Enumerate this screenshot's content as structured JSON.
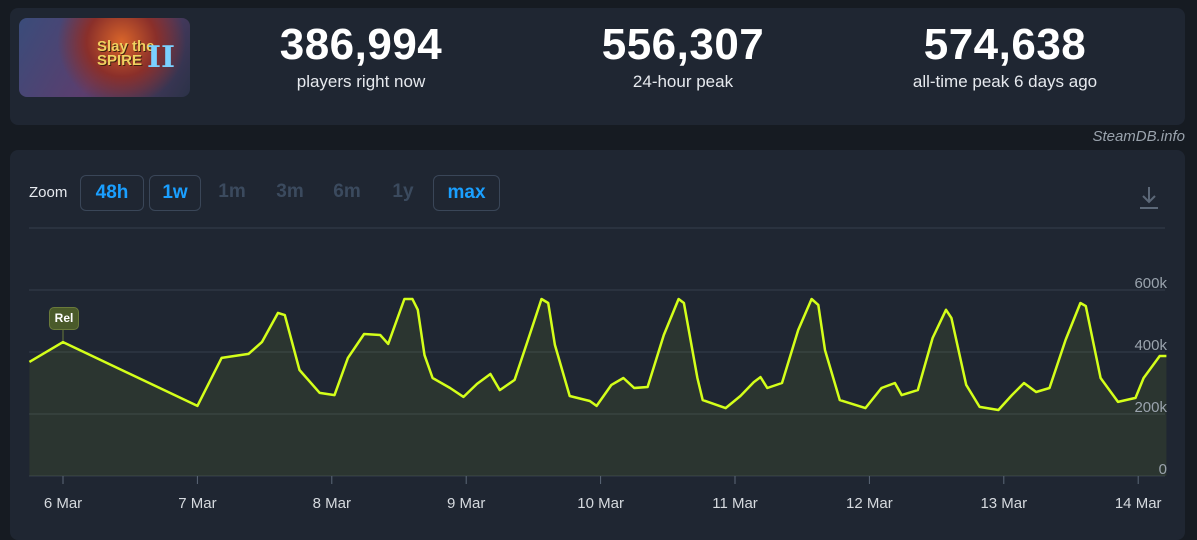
{
  "game": {
    "title": "Slay the Spire II",
    "logo_line1": "Slay the",
    "logo_line2": "SPIRE",
    "logo_numeral": "II"
  },
  "stats": [
    {
      "value": "386,994",
      "label": "players right now"
    },
    {
      "value": "556,307",
      "label": "24-hour peak"
    },
    {
      "value": "574,638",
      "label": "all-time peak 6 days ago"
    }
  ],
  "credit": "SteamDB.info",
  "zoom": {
    "label": "Zoom",
    "options": [
      "48h",
      "1w",
      "1m",
      "3m",
      "6m",
      "1y",
      "max"
    ],
    "active": [
      "48h",
      "1w",
      "max"
    ]
  },
  "chart_data": {
    "type": "area",
    "x_unit": "days since 6 Mar",
    "xlim": [
      -0.25,
      8.21
    ],
    "ylim": [
      0,
      800000
    ],
    "y_ticks": [
      {
        "v": 0,
        "label": "0"
      },
      {
        "v": 200000,
        "label": "200k"
      },
      {
        "v": 400000,
        "label": "400k"
      },
      {
        "v": 600000,
        "label": "600k"
      }
    ],
    "x_ticks": [
      {
        "d": 0,
        "label": "6 Mar"
      },
      {
        "d": 1,
        "label": "7 Mar"
      },
      {
        "d": 2,
        "label": "8 Mar"
      },
      {
        "d": 3,
        "label": "9 Mar"
      },
      {
        "d": 4,
        "label": "10 Mar"
      },
      {
        "d": 5,
        "label": "11 Mar"
      },
      {
        "d": 6,
        "label": "12 Mar"
      },
      {
        "d": 7,
        "label": "13 Mar"
      },
      {
        "d": 8,
        "label": "14 Mar"
      }
    ],
    "annotation": {
      "d": 0,
      "label": "Rel"
    },
    "line_color": "#d4ff1a",
    "series": [
      {
        "name": "Players",
        "points": [
          [
            -0.25,
            368
          ],
          [
            0,
            432
          ],
          [
            1.0,
            226
          ],
          [
            1.18,
            381
          ],
          [
            1.38,
            394
          ],
          [
            1.48,
            432
          ],
          [
            1.6,
            526
          ],
          [
            1.65,
            519
          ],
          [
            1.76,
            342
          ],
          [
            1.91,
            268
          ],
          [
            2.02,
            261
          ],
          [
            2.12,
            381
          ],
          [
            2.24,
            458
          ],
          [
            2.36,
            455
          ],
          [
            2.42,
            426
          ],
          [
            2.54,
            571
          ],
          [
            2.6,
            571
          ],
          [
            2.64,
            536
          ],
          [
            2.69,
            390
          ],
          [
            2.75,
            316
          ],
          [
            2.88,
            284
          ],
          [
            2.98,
            255
          ],
          [
            3.08,
            297
          ],
          [
            3.18,
            329
          ],
          [
            3.25,
            277
          ],
          [
            3.36,
            310
          ],
          [
            3.46,
            439
          ],
          [
            3.56,
            571
          ],
          [
            3.61,
            558
          ],
          [
            3.66,
            423
          ],
          [
            3.77,
            258
          ],
          [
            3.92,
            242
          ],
          [
            3.97,
            226
          ],
          [
            4.08,
            294
          ],
          [
            4.17,
            316
          ],
          [
            4.25,
            284
          ],
          [
            4.35,
            287
          ],
          [
            4.47,
            455
          ],
          [
            4.58,
            571
          ],
          [
            4.62,
            558
          ],
          [
            4.72,
            316
          ],
          [
            4.76,
            245
          ],
          [
            4.93,
            219
          ],
          [
            5.04,
            258
          ],
          [
            5.14,
            303
          ],
          [
            5.19,
            319
          ],
          [
            5.24,
            284
          ],
          [
            5.35,
            300
          ],
          [
            5.47,
            471
          ],
          [
            5.57,
            571
          ],
          [
            5.62,
            552
          ],
          [
            5.67,
            406
          ],
          [
            5.78,
            245
          ],
          [
            5.97,
            219
          ],
          [
            6.09,
            284
          ],
          [
            6.19,
            300
          ],
          [
            6.24,
            261
          ],
          [
            6.36,
            277
          ],
          [
            6.47,
            445
          ],
          [
            6.57,
            536
          ],
          [
            6.61,
            510
          ],
          [
            6.72,
            294
          ],
          [
            6.82,
            223
          ],
          [
            6.96,
            213
          ],
          [
            7.06,
            261
          ],
          [
            7.15,
            300
          ],
          [
            7.24,
            271
          ],
          [
            7.34,
            284
          ],
          [
            7.46,
            439
          ],
          [
            7.57,
            558
          ],
          [
            7.61,
            548
          ],
          [
            7.72,
            316
          ],
          [
            7.85,
            239
          ],
          [
            7.98,
            252
          ],
          [
            8.04,
            316
          ],
          [
            8.16,
            387
          ],
          [
            8.21,
            387
          ]
        ],
        "value_scale": 1000
      }
    ]
  }
}
